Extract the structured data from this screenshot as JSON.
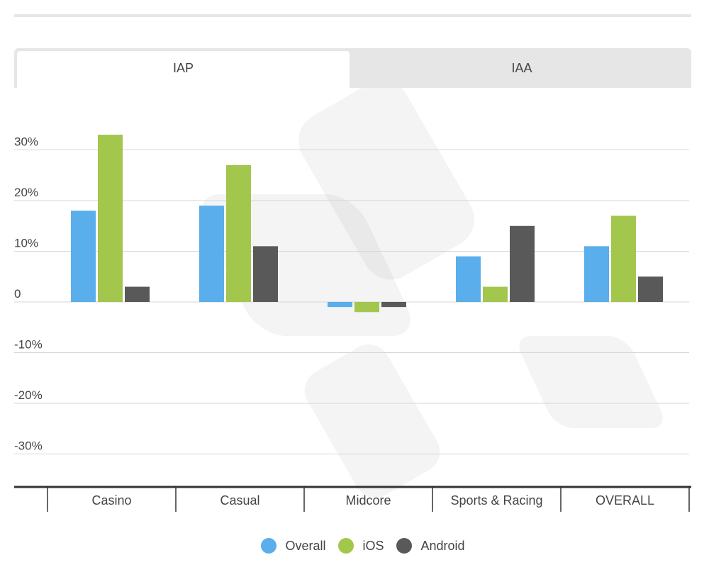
{
  "tabs": [
    {
      "label": "IAP",
      "active": true
    },
    {
      "label": "IAA",
      "active": false
    }
  ],
  "colors": {
    "Overall": "#5aaeec",
    "iOS": "#a2c74c",
    "Android": "#595959"
  },
  "chart_data": {
    "type": "bar",
    "categories": [
      "Casino",
      "Casual",
      "Midcore",
      "Sports & Racing",
      "OVERALL"
    ],
    "series": [
      {
        "name": "Overall",
        "values": [
          18,
          19,
          -1,
          9,
          11
        ]
      },
      {
        "name": "iOS",
        "values": [
          33,
          27,
          -2,
          3,
          17
        ]
      },
      {
        "name": "Android",
        "values": [
          3,
          11,
          -1,
          15,
          5
        ]
      }
    ],
    "ylim": [
      -30,
      30
    ],
    "yticks": [
      30,
      20,
      10,
      0,
      -10,
      -20,
      -30
    ],
    "ytick_labels": [
      "30%",
      "20%",
      "10%",
      "0",
      "-10%",
      "-20%",
      "-30%"
    ],
    "grid": true,
    "legend": "bottom-center"
  }
}
